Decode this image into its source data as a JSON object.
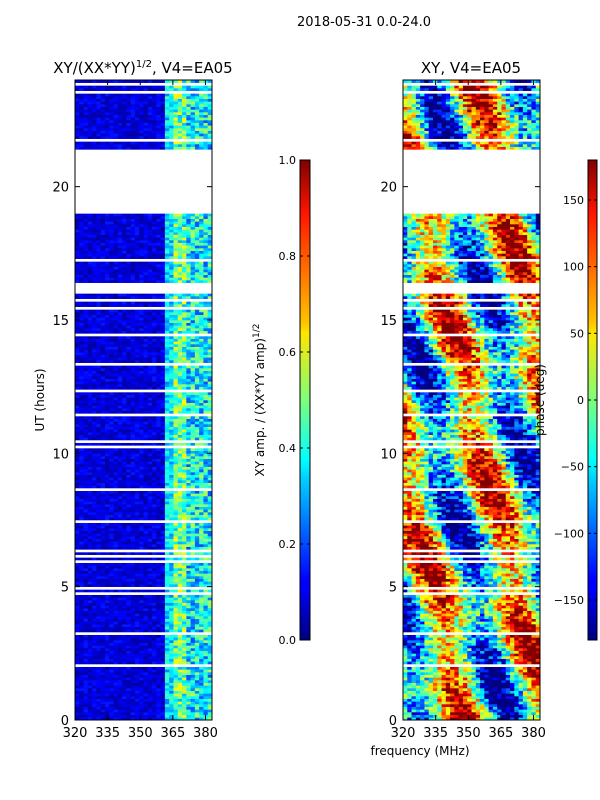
{
  "suptitle": "2018-05-31 0.0-24.0",
  "chart_data": [
    {
      "type": "heatmap",
      "title_main": "XY/(XX*YY)",
      "title_sup": "1/2",
      "title_tail": ", V4=EA05",
      "xlabel": "",
      "ylabel": "UT (hours)",
      "xlim": [
        320,
        383
      ],
      "ylim": [
        0,
        24
      ],
      "xticks": [
        320,
        335,
        350,
        365,
        380
      ],
      "yticks": [
        0,
        5,
        10,
        15,
        20
      ],
      "value_range": [
        0,
        1
      ],
      "colormap": "jet",
      "flagged_hours": [
        [
          19.0,
          21.4
        ]
      ],
      "colorbar": {
        "label_main": "XY amp. / (XX*YY amp)",
        "label_sup": "1/2",
        "ticks": [
          "0.0",
          "0.2",
          "0.4",
          "0.6",
          "0.8",
          "1.0"
        ],
        "tick_values": [
          0,
          0.2,
          0.4,
          0.6,
          0.8,
          1.0
        ]
      }
    },
    {
      "type": "heatmap",
      "title_main": "XY, V4=EA05",
      "xlabel": "frequency (MHz)",
      "ylabel": "",
      "xlim": [
        320,
        383
      ],
      "ylim": [
        0,
        24
      ],
      "xticks": [
        320,
        335,
        350,
        365,
        380
      ],
      "yticks": [
        0,
        5,
        10,
        15,
        20
      ],
      "value_range": [
        -180,
        180
      ],
      "colormap": "jet",
      "flagged_hours": [
        [
          19.0,
          21.4
        ]
      ],
      "colorbar": {
        "label_main": "phase (deg)",
        "ticks": [
          "−150",
          "−100",
          "−50",
          "0",
          "50",
          "100",
          "150"
        ],
        "tick_values": [
          -150,
          -100,
          -50,
          0,
          50,
          100,
          150
        ]
      }
    }
  ]
}
